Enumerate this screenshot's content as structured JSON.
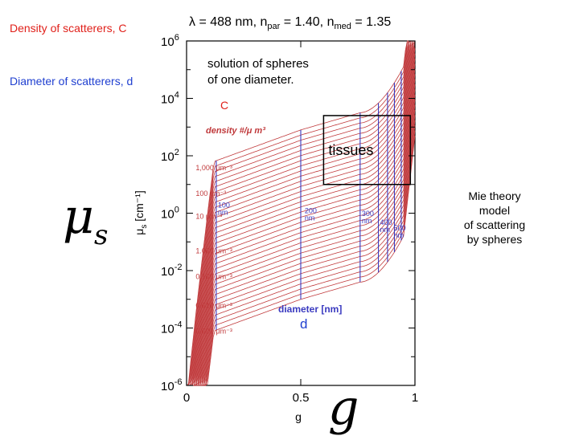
{
  "slide": {
    "density_label": "Density of scatterers, C",
    "diameter_label": "Diameter of scatterers, d",
    "mu_symbol": "μ",
    "mu_subscript": "s",
    "g_symbol": "g",
    "c_marker": "C",
    "d_marker": "d",
    "side_note": [
      "Mie theory",
      "model",
      "of scattering",
      "by spheres"
    ],
    "colors": {
      "red": "#e0201a",
      "blue": "#1f3fd0",
      "curve": "#c0393b",
      "diameter_line": "#3a3ac0"
    }
  },
  "chart_data": {
    "type": "line",
    "header": "λ = 488 nm, n_par = 1.40, n_med = 1.35",
    "header_parts": {
      "lambda": "λ = 488 nm, n",
      "par_sub": "par",
      "mid": " = 1.40, n",
      "med_sub": "med",
      "end": " = 1.35"
    },
    "annotation": [
      "solution of spheres",
      "of one diameter."
    ],
    "density_axis_label": "density #/μ m³",
    "diameter_axis_label": "diameter [nm]",
    "tissues_label": "tissues",
    "xlabel": "g",
    "ylabel_main": "μ",
    "ylabel_sub": "s",
    "ylabel_unit": "[cm⁻¹]",
    "xlim": [
      0,
      1
    ],
    "ylim_log10": [
      -6,
      6
    ],
    "yscale": "log",
    "x_ticks": [
      {
        "v": 0,
        "label": "0"
      },
      {
        "v": 0.5,
        "label": "0.5"
      },
      {
        "v": 1,
        "label": "1"
      }
    ],
    "y_ticks": [
      {
        "e": -6,
        "label": "-6"
      },
      {
        "e": -4,
        "label": "-4"
      },
      {
        "e": -2,
        "label": "-2"
      },
      {
        "e": 0,
        "label": "0"
      },
      {
        "e": 2,
        "label": "2"
      },
      {
        "e": 4,
        "label": "4"
      },
      {
        "e": 6,
        "label": "6"
      }
    ],
    "density_labels": [
      {
        "label": "1,000 μm⁻³",
        "g": 0.04,
        "log_mu": 1.5
      },
      {
        "label": "100 μm⁻³",
        "g": 0.04,
        "log_mu": 0.6
      },
      {
        "label": "10 μm⁻³",
        "g": 0.04,
        "log_mu": -0.2
      },
      {
        "label": "1.000 μm⁻³",
        "g": 0.04,
        "log_mu": -1.4
      },
      {
        "label": "0.100 μm⁻³",
        "g": 0.04,
        "log_mu": -2.3
      },
      {
        "label": "0.010 μm⁻³",
        "g": 0.04,
        "log_mu": -3.3
      },
      {
        "label": "0.001 μm⁻³",
        "g": 0.04,
        "log_mu": -4.2
      }
    ],
    "diameter_labels": [
      {
        "label": "100 nm",
        "g": 0.13,
        "log_mu": 0.2
      },
      {
        "label": "200 nm",
        "g": 0.51,
        "log_mu": 0.0
      },
      {
        "label": "300 nm",
        "g": 0.76,
        "log_mu": -0.1
      },
      {
        "label": "400 nm",
        "g": 0.84,
        "log_mu": -0.4
      },
      {
        "label": "500 nm",
        "g": 0.9,
        "log_mu": -0.6
      }
    ],
    "diameter_g": [
      0.13,
      0.5,
      0.76,
      0.84,
      0.88,
      0.91,
      0.94
    ],
    "tissue_box": {
      "g": [
        0.6,
        0.98
      ],
      "log_mu": [
        1.0,
        3.4
      ]
    },
    "curves": {
      "count": 34,
      "offset_range": [
        -4.1,
        1.8
      ]
    }
  }
}
